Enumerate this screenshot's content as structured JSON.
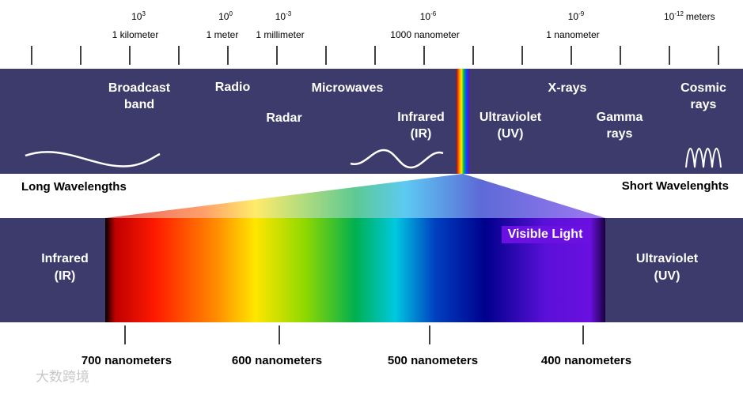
{
  "scale": [
    {
      "base": "10",
      "exp": "3",
      "label": "1 kilometer"
    },
    {
      "base": "10",
      "exp": "0",
      "label": "1 meter"
    },
    {
      "base": "10",
      "exp": "-3",
      "label": "1 millimeter"
    },
    {
      "base": "10",
      "exp": "-6",
      "label": "1000 nanometer"
    },
    {
      "base": "10",
      "exp": "-9",
      "label": "1 nanometer"
    },
    {
      "base": "10",
      "exp": "-12",
      "unit": "meters"
    }
  ],
  "bands": [
    {
      "lines": [
        "Broadcast",
        "band"
      ]
    },
    {
      "lines": [
        "Radio"
      ]
    },
    {
      "lines": [
        "Radar"
      ]
    },
    {
      "lines": [
        "Microwaves"
      ]
    },
    {
      "lines": [
        "Infrared",
        "(IR)"
      ]
    },
    {
      "lines": [
        "Ultraviolet",
        "(UV)"
      ]
    },
    {
      "lines": [
        "X-rays"
      ]
    },
    {
      "lines": [
        "Gamma",
        "rays"
      ]
    },
    {
      "lines": [
        "Cosmic",
        "rays"
      ]
    }
  ],
  "long_label": "Long Wavelengths",
  "short_label": "Short Wavelenghts",
  "visible": {
    "left": [
      "Infrared",
      "(IR)"
    ],
    "title": "Visible Light",
    "right": [
      "Ultraviolet",
      "(UV)"
    ]
  },
  "wavelengths": [
    "700 nanometers",
    "600 nanometers",
    "500 nanometers",
    "400 nanometers"
  ],
  "watermark": "大数跨境"
}
